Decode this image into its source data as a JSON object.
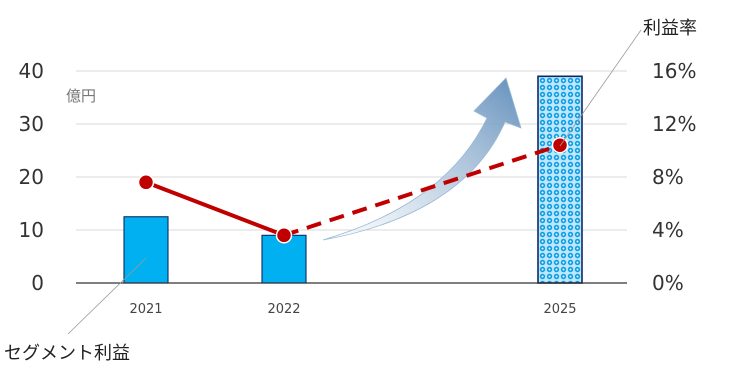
{
  "chart_data": {
    "type": "bar",
    "categories": [
      "2021",
      "2022",
      "2025"
    ],
    "series": [
      {
        "name": "セグメント利益",
        "type": "bar",
        "axis": "left",
        "values": [
          12.5,
          9,
          39
        ],
        "patterns": [
          "solid",
          "solid",
          "dotted"
        ]
      },
      {
        "name": "利益率",
        "type": "line",
        "axis": "right",
        "values": [
          7.6,
          3.6,
          10.4
        ],
        "dashed_segment": [
          "2022",
          "2025"
        ]
      }
    ],
    "left_axis": {
      "ylim": [
        0,
        40
      ],
      "ticks": [
        "0",
        "10",
        "20",
        "30",
        "40"
      ],
      "unit": "億円"
    },
    "right_axis": {
      "ylim": [
        0,
        16
      ],
      "ticks": [
        "0%",
        "4%",
        "8%",
        "12%",
        "16%"
      ]
    },
    "grid": true,
    "legend": "callouts",
    "annotation": "upward growth arrow from 2022 toward 2025",
    "colors": {
      "bar_fill": "#00b0f0",
      "bar_stroke": "#0a2a66",
      "line": "#c00000",
      "marker_stroke": "#ffffff",
      "grid": "#d9d9d9",
      "arrow": "#7ea6c8"
    }
  }
}
